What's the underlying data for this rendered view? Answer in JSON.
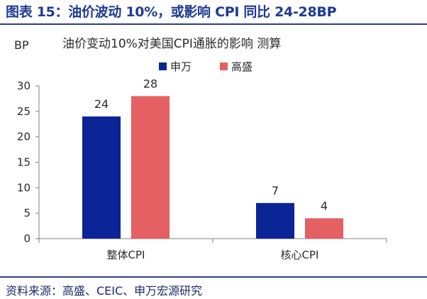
{
  "figure": {
    "title": "图表 15：油价波动 10%，或影响 CPI 同比 24-28BP",
    "source": "资料来源：高盛、CEIC、申万宏源研究"
  },
  "colors": {
    "title": "#1f3a93",
    "series_1": "#0b2495",
    "series_2": "#e46062",
    "axis": "#808080"
  },
  "chart_data": {
    "type": "bar",
    "title": "油价变动10%对美国CPI通胀的影响 测算",
    "unit": "BP",
    "categories": [
      "整体CPI",
      "核心CPI"
    ],
    "series": [
      {
        "name": "申万",
        "values": [
          24,
          7
        ],
        "color": "#0b2495"
      },
      {
        "name": "高盛",
        "values": [
          28,
          4
        ],
        "color": "#e46062"
      }
    ],
    "ylim": [
      0,
      30
    ],
    "yticks": [
      0,
      5,
      10,
      15,
      20,
      25,
      30
    ],
    "data_labels": true,
    "grid": false,
    "legend": "top-center"
  }
}
